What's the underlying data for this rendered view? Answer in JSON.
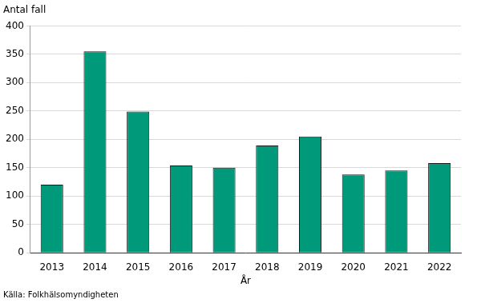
{
  "chart_data": {
    "type": "bar",
    "y_label": "Antal fall",
    "x_label": "År",
    "source": "Källa: Folkhälsomyndigheten",
    "categories": [
      "2013",
      "2014",
      "2015",
      "2016",
      "2017",
      "2018",
      "2019",
      "2020",
      "2021",
      "2022"
    ],
    "values": [
      120,
      355,
      249,
      154,
      150,
      189,
      205,
      138,
      145,
      158
    ],
    "color": "#009a7a",
    "ylim": [
      0,
      400
    ],
    "yticks": [
      0,
      50,
      100,
      150,
      200,
      250,
      300,
      350,
      400
    ],
    "grid": true
  }
}
